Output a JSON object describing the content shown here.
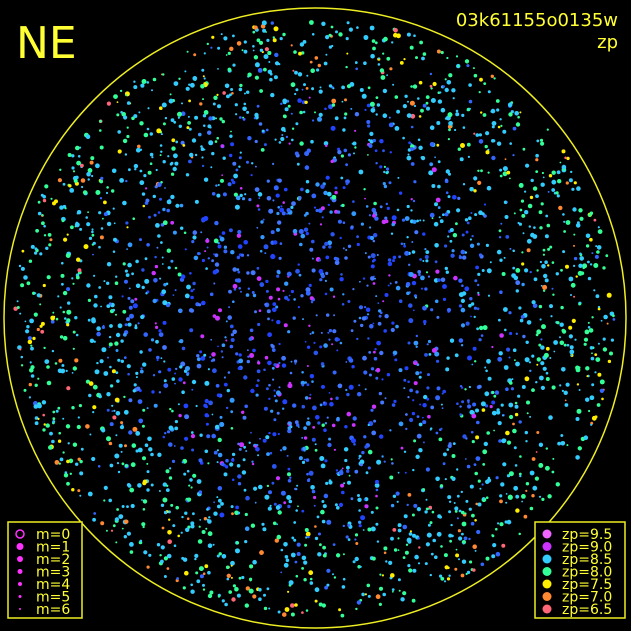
{
  "header": {
    "title": "NE",
    "frame": "03k61155o0135w",
    "mode": "zp"
  },
  "magnitude_legend": {
    "color": "#ff33ff",
    "entries": [
      {
        "label": "m=0"
      },
      {
        "label": "m=1"
      },
      {
        "label": "m=2"
      },
      {
        "label": "m=3"
      },
      {
        "label": "m=4"
      },
      {
        "label": "m=5"
      },
      {
        "label": "m=6"
      }
    ]
  },
  "zp_legend": {
    "entries": [
      {
        "label": "zp=9.5",
        "color": "#ee66ff"
      },
      {
        "label": "zp=9.0",
        "color": "#cc33ff"
      },
      {
        "label": "zp=8.5",
        "color": "#33ccff"
      },
      {
        "label": "zp=8.0",
        "color": "#33ff99"
      },
      {
        "label": "zp=7.5",
        "color": "#ffee00"
      },
      {
        "label": "zp=7.0",
        "color": "#ff8833"
      },
      {
        "label": "zp=6.5",
        "color": "#ff6677"
      }
    ]
  }
}
